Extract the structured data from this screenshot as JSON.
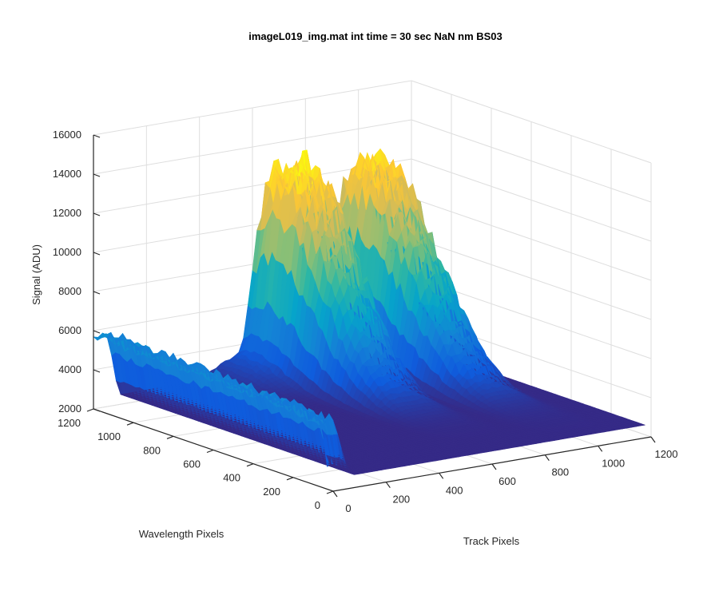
{
  "chart_data": {
    "type": "surface",
    "title": "imageL019_img.mat int time = 30 sec  NaN nm BS03",
    "xlabel": "Track Pixels",
    "ylabel": "Wavelength Pixels",
    "zlabel": "Signal (ADU)",
    "xlim": [
      0,
      1200
    ],
    "ylim": [
      0,
      1200
    ],
    "zlim": [
      2000,
      16000
    ],
    "xticks": [
      "0",
      "200",
      "400",
      "600",
      "800",
      "1000",
      "1200"
    ],
    "yticks": [
      "0",
      "200",
      "400",
      "600",
      "800",
      "1000",
      "1200"
    ],
    "zticks": [
      "2000",
      "4000",
      "6000",
      "8000",
      "10000",
      "12000",
      "14000",
      "16000"
    ],
    "grid": true,
    "colormap": "parula",
    "colors": [
      "#352a87",
      "#0f5cdd",
      "#1481d6",
      "#06a4ca",
      "#2eb7a4",
      "#87bf77",
      "#d1bb59",
      "#fec832",
      "#f9fb0e"
    ],
    "baseline": 2500,
    "features": [
      {
        "name": "band_left",
        "x_range": [
          0,
          90
        ],
        "y_range": [
          30,
          1200
        ],
        "peak": 6000
      },
      {
        "name": "ridge_1",
        "x_center": 700,
        "y_center": 1080,
        "peak": 13000
      },
      {
        "name": "ridge_2",
        "x_center": 990,
        "y_center": 1090,
        "peak": 12800
      }
    ]
  }
}
